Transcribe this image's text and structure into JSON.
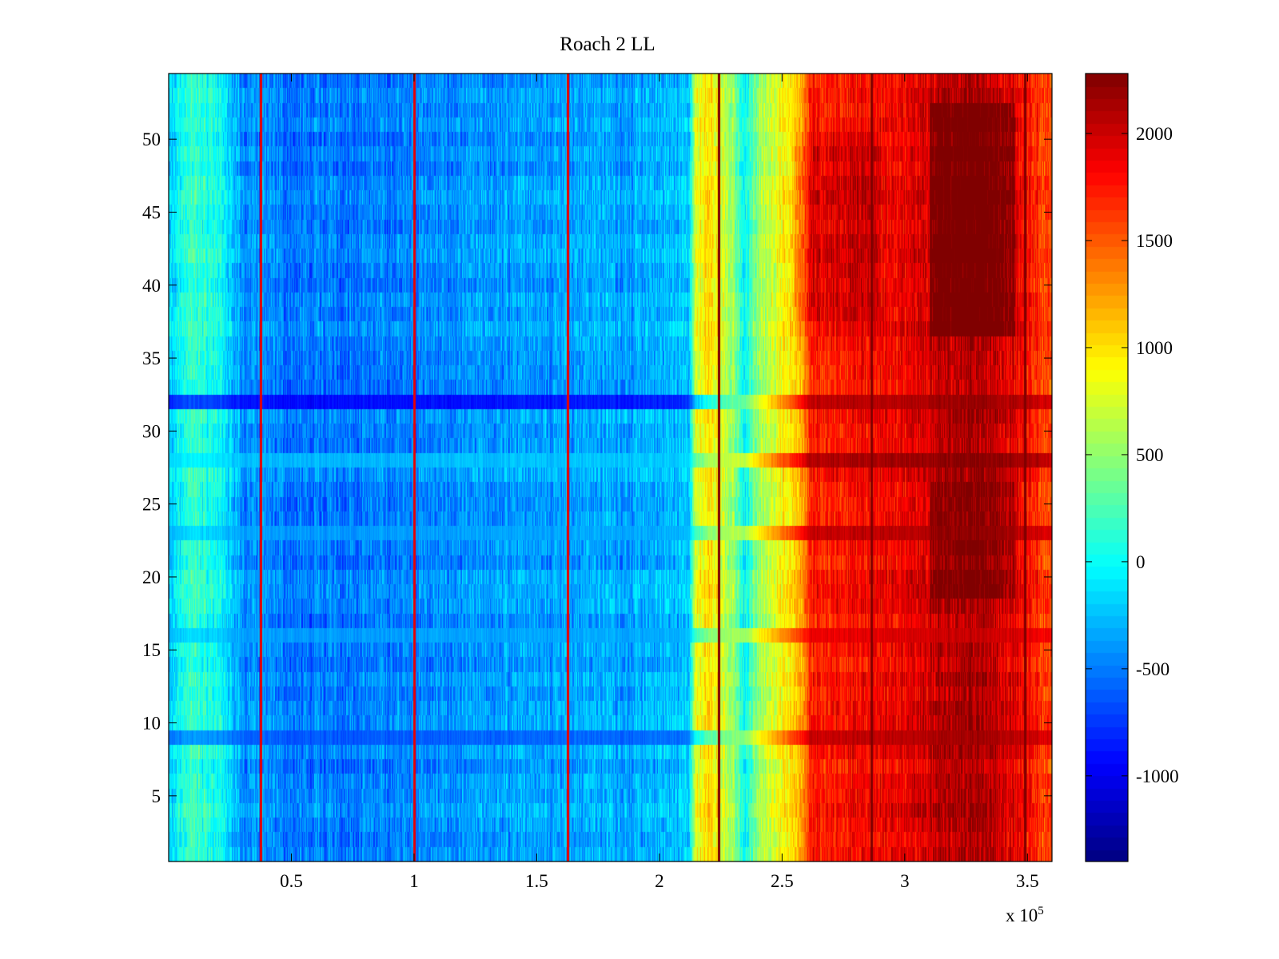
{
  "chart_data": {
    "type": "heatmap",
    "title": "Roach 2 LL",
    "xlabel": "",
    "ylabel": "",
    "x_multiplier_base": "x 10",
    "x_multiplier_exp": "5",
    "xlim": [
      0.0,
      3.6
    ],
    "ylim": [
      0.5,
      54.5
    ],
    "clim": [
      -1400,
      2280
    ],
    "colormap": "jet",
    "x_ticks": [
      0.5,
      1,
      1.5,
      2,
      2.5,
      3,
      3.5
    ],
    "x_tick_labels": [
      "0.5",
      "1",
      "1.5",
      "2",
      "2.5",
      "3",
      "3.5"
    ],
    "y_ticks": [
      5,
      10,
      15,
      20,
      25,
      30,
      35,
      40,
      45,
      50
    ],
    "y_tick_labels": [
      "5",
      "10",
      "15",
      "20",
      "25",
      "30",
      "35",
      "40",
      "45",
      "50"
    ],
    "colorbar_ticks": [
      -1000,
      -500,
      0,
      500,
      1000,
      1500,
      2000
    ],
    "colorbar_tick_labels": [
      "-1000",
      "-500",
      "0",
      "500",
      "1000",
      "1500",
      "2000"
    ],
    "rows": 54,
    "column_profile": [
      {
        "x": 0.0,
        "value": -150
      },
      {
        "x": 0.1,
        "value": 150
      },
      {
        "x": 0.2,
        "value": 50
      },
      {
        "x": 0.3,
        "value": -400
      },
      {
        "x": 0.5,
        "value": -520
      },
      {
        "x": 0.8,
        "value": -480
      },
      {
        "x": 1.1,
        "value": -450
      },
      {
        "x": 1.4,
        "value": -380
      },
      {
        "x": 1.7,
        "value": -320
      },
      {
        "x": 1.9,
        "value": -350
      },
      {
        "x": 2.12,
        "value": -200
      },
      {
        "x": 2.15,
        "value": 800
      },
      {
        "x": 2.2,
        "value": 1050
      },
      {
        "x": 2.3,
        "value": 500
      },
      {
        "x": 2.35,
        "value": -50
      },
      {
        "x": 2.4,
        "value": 500
      },
      {
        "x": 2.5,
        "value": 900
      },
      {
        "x": 2.58,
        "value": 1150
      },
      {
        "x": 2.62,
        "value": 1750
      },
      {
        "x": 2.8,
        "value": 1800
      },
      {
        "x": 3.0,
        "value": 1850
      },
      {
        "x": 3.15,
        "value": 2050
      },
      {
        "x": 3.3,
        "value": 2150
      },
      {
        "x": 3.45,
        "value": 1900
      },
      {
        "x": 3.6,
        "value": 1500
      }
    ],
    "vertical_lines": [
      {
        "x": 0.375,
        "value": 1900
      },
      {
        "x": 1.0,
        "value": 1900
      },
      {
        "x": 1.625,
        "value": 1900
      },
      {
        "x": 2.24,
        "value": 2280
      },
      {
        "x": 2.865,
        "value": 2280
      },
      {
        "x": 3.49,
        "value": 2280
      }
    ],
    "horizontal_bands": [
      {
        "y": 32,
        "value_left": -1100,
        "value_right": 2250
      },
      {
        "y": 28,
        "value_left": -200,
        "value_right": 2280
      },
      {
        "y": 9,
        "value_left": -700,
        "value_right": 2150
      },
      {
        "y": 16,
        "value_left": -300,
        "value_right": 2000
      },
      {
        "y": 23,
        "value_left": -350,
        "value_right": 2150
      }
    ]
  }
}
